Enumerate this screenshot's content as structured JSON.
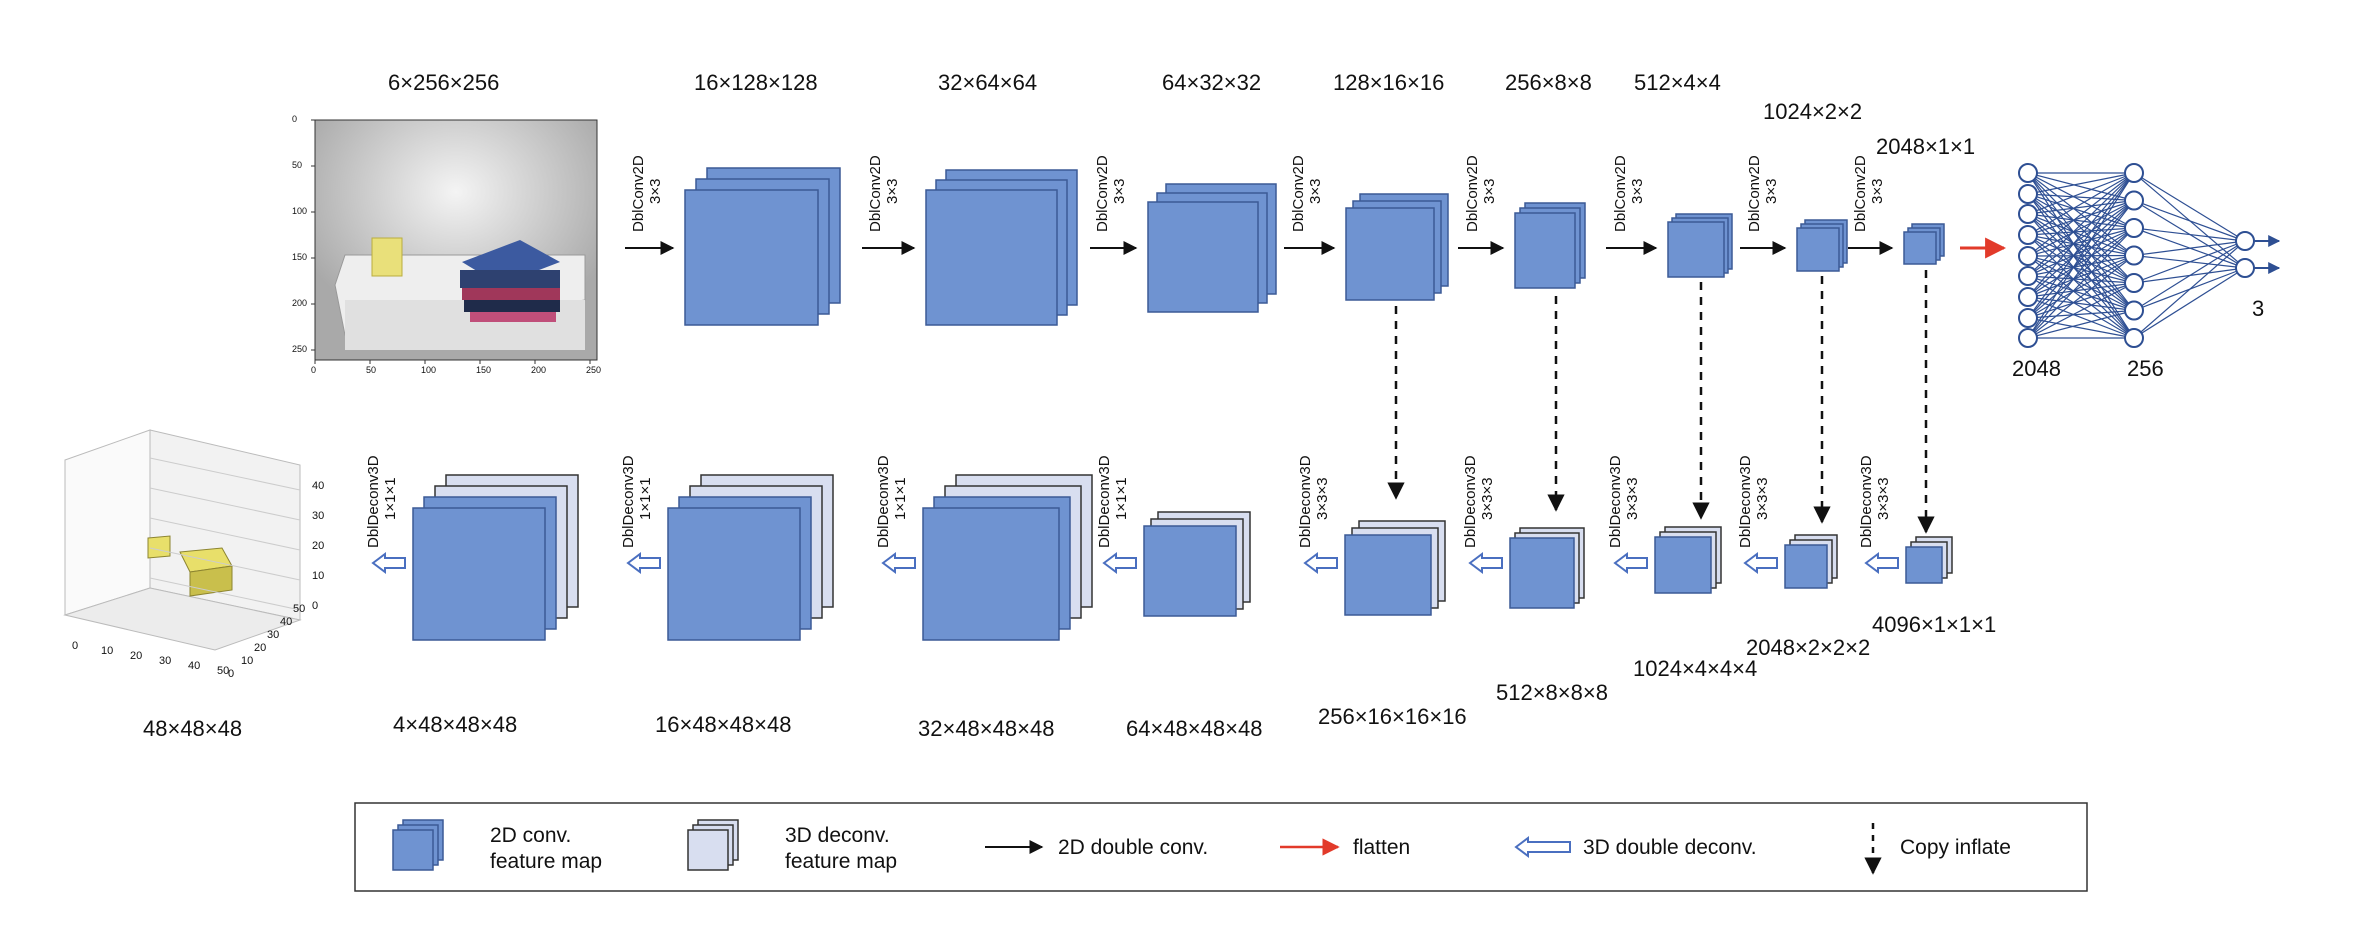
{
  "encoder": {
    "input_dim": "6×256×256",
    "image_axis_y_ticks": [
      "0",
      "50",
      "100",
      "150",
      "200",
      "250"
    ],
    "image_axis_x_ticks": [
      "0",
      "50",
      "100",
      "150",
      "200",
      "250"
    ],
    "stages": [
      {
        "dim": "16×128×128",
        "op": "DblConv2D",
        "kernel": "3×3"
      },
      {
        "dim": "32×64×64",
        "op": "DblConv2D",
        "kernel": "3×3"
      },
      {
        "dim": "64×32×32",
        "op": "DblConv2D",
        "kernel": "3×3"
      },
      {
        "dim": "128×16×16",
        "op": "DblConv2D",
        "kernel": "3×3"
      },
      {
        "dim": "256×8×8",
        "op": "DblConv2D",
        "kernel": "3×3"
      },
      {
        "dim": "512×4×4",
        "op": "DblConv2D",
        "kernel": "3×3"
      },
      {
        "dim": "1024×2×2",
        "op": "DblConv2D",
        "kernel": "3×3"
      },
      {
        "dim": "2048×1×1",
        "op": "DblConv2D",
        "kernel": "3×3"
      }
    ]
  },
  "mlp": {
    "layer_labels": [
      "2048",
      "256",
      "3"
    ]
  },
  "decoder": {
    "output_dim": "48×48×48",
    "plot_z_ticks": [
      "0",
      "10",
      "20",
      "30",
      "40"
    ],
    "plot_x_ticks": [
      "0",
      "10",
      "20",
      "30",
      "40",
      "50"
    ],
    "plot_y_ticks": [
      "0",
      "10",
      "20",
      "30",
      "40",
      "50"
    ],
    "stages": [
      {
        "dim": "4096×1×1×1",
        "op": "DblDeconv3D",
        "kernel": "3×3×3"
      },
      {
        "dim": "2048×2×2×2",
        "op": "DblDeconv3D",
        "kernel": "3×3×3"
      },
      {
        "dim": "1024×4×4×4",
        "op": "DblDeconv3D",
        "kernel": "3×3×3"
      },
      {
        "dim": "512×8×8×8",
        "op": "DblDeconv3D",
        "kernel": "3×3×3"
      },
      {
        "dim": "256×16×16×16",
        "op": "DblDeconv3D",
        "kernel": "3×3×3"
      },
      {
        "dim": "64×48×48×48",
        "op": "DblDeconv3D",
        "kernel": "1×1×1"
      },
      {
        "dim": "32×48×48×48",
        "op": "DblDeconv3D",
        "kernel": "1×1×1"
      },
      {
        "dim": "16×48×48×48",
        "op": "DblDeconv3D",
        "kernel": "1×1×1"
      },
      {
        "dim": "4×48×48×48",
        "op": "DblDeconv3D",
        "kernel": "1×1×1"
      }
    ]
  },
  "legend": {
    "conv_map": [
      "2D conv.",
      "feature map"
    ],
    "deconv_map": [
      "3D deconv.",
      "feature map"
    ],
    "double_conv": "2D double conv.",
    "flatten": "flatten",
    "double_deconv": "3D  double deconv.",
    "copy_inflate": "Copy inflate"
  },
  "colors": {
    "conv_fill": "#6f93d1",
    "conv_stroke": "#3c5a96",
    "deconv_fill": "#d8def0",
    "flatten_arrow": "#e23a2a",
    "deconv_arrow": "#4a6fc0",
    "mlp_line": "#2e4f93"
  }
}
